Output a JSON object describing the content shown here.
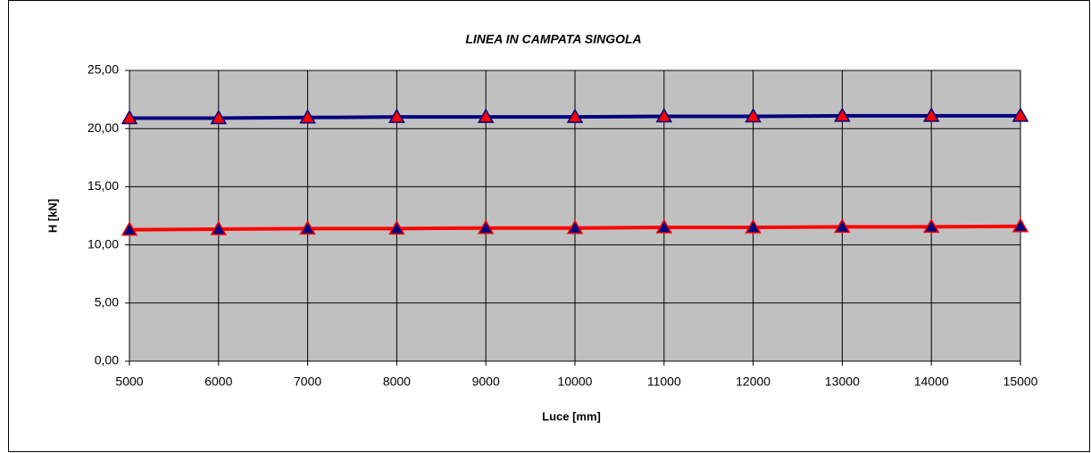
{
  "chart_data": {
    "type": "line",
    "title": "LINEA IN CAMPATA SINGOLA",
    "xlabel": "Luce [mm]",
    "ylabel": "H [kN]",
    "x": [
      5000,
      6000,
      7000,
      8000,
      9000,
      10000,
      11000,
      12000,
      13000,
      14000,
      15000
    ],
    "series": [
      {
        "color": "#000080",
        "marker_color": "#ff0000",
        "values": [
          20.9,
          20.9,
          20.95,
          21.0,
          21.0,
          21.0,
          21.05,
          21.05,
          21.1,
          21.1,
          21.1
        ]
      },
      {
        "color": "#ff0000",
        "marker_color": "#000080",
        "values": [
          11.3,
          11.35,
          11.4,
          11.4,
          11.45,
          11.45,
          11.5,
          11.5,
          11.55,
          11.55,
          11.6
        ]
      }
    ],
    "xlim": [
      5000,
      15000
    ],
    "xticks": [
      5000,
      6000,
      7000,
      8000,
      9000,
      10000,
      11000,
      12000,
      13000,
      14000,
      15000
    ],
    "ylim": [
      0,
      25
    ],
    "yticks": [
      {
        "value": 0,
        "label": "0,00"
      },
      {
        "value": 5,
        "label": "5,00"
      },
      {
        "value": 10,
        "label": "10,00"
      },
      {
        "value": 15,
        "label": "15,00"
      },
      {
        "value": 20,
        "label": "20,00"
      },
      {
        "value": 25,
        "label": "25,00"
      }
    ],
    "grid": true,
    "background": "#c0c0c0"
  }
}
